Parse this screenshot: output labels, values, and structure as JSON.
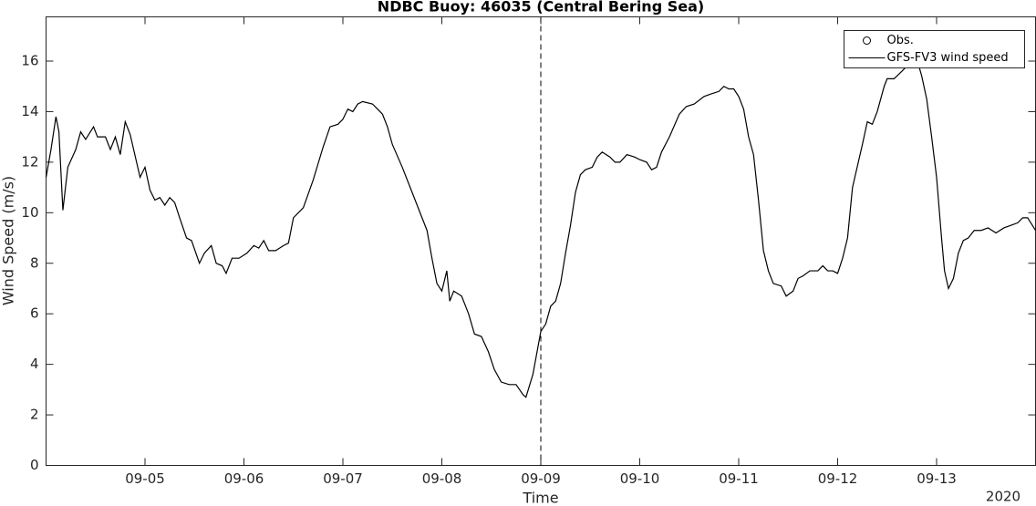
{
  "chart_data": {
    "type": "line",
    "title": "NDBC Buoy: 46035 (Central Bering Sea)",
    "x_label": "Time",
    "y_label": "Wind Speed (m/s)",
    "x_year": "2020",
    "xlim": [
      4,
      14
    ],
    "ylim": [
      0,
      17.75
    ],
    "xticks": [
      {
        "value": 5,
        "label": "09-05"
      },
      {
        "value": 6,
        "label": "09-06"
      },
      {
        "value": 7,
        "label": "09-07"
      },
      {
        "value": 8,
        "label": "09-08"
      },
      {
        "value": 9,
        "label": "09-09"
      },
      {
        "value": 10,
        "label": "09-10"
      },
      {
        "value": 11,
        "label": "09-11"
      },
      {
        "value": 12,
        "label": "09-12"
      },
      {
        "value": 13,
        "label": "09-13"
      }
    ],
    "yticks": [
      0,
      2,
      4,
      6,
      8,
      10,
      12,
      14,
      16
    ],
    "vline": 9,
    "legend": "upper right",
    "grid": false,
    "series": [
      {
        "name": "Obs.",
        "color": "#000000",
        "marker": "circle",
        "x": [],
        "values": []
      },
      {
        "name": "GFS-FV3 wind speed",
        "color": "#000000",
        "x": [
          4.0,
          4.05,
          4.1,
          4.13,
          4.17,
          4.22,
          4.3,
          4.35,
          4.4,
          4.48,
          4.52,
          4.6,
          4.65,
          4.7,
          4.75,
          4.8,
          4.85,
          4.95,
          5.0,
          5.05,
          5.1,
          5.15,
          5.2,
          5.25,
          5.3,
          5.35,
          5.42,
          5.47,
          5.55,
          5.6,
          5.67,
          5.72,
          5.78,
          5.82,
          5.88,
          5.95,
          6.03,
          6.1,
          6.15,
          6.2,
          6.25,
          6.32,
          6.4,
          6.45,
          6.5,
          6.6,
          6.7,
          6.8,
          6.87,
          6.95,
          7.0,
          7.05,
          7.1,
          7.15,
          7.2,
          7.3,
          7.35,
          7.4,
          7.45,
          7.5,
          7.6,
          7.7,
          7.8,
          7.85,
          7.9,
          7.95,
          8.0,
          8.05,
          8.08,
          8.12,
          8.2,
          8.27,
          8.33,
          8.4,
          8.47,
          8.53,
          8.6,
          8.68,
          8.75,
          8.82,
          8.85,
          8.92,
          9.0,
          9.05,
          9.1,
          9.15,
          9.2,
          9.25,
          9.3,
          9.35,
          9.4,
          9.45,
          9.52,
          9.57,
          9.62,
          9.7,
          9.75,
          9.8,
          9.87,
          9.95,
          10.0,
          10.07,
          10.12,
          10.17,
          10.22,
          10.3,
          10.4,
          10.47,
          10.55,
          10.65,
          10.72,
          10.8,
          10.85,
          10.9,
          10.95,
          11.0,
          11.05,
          11.1,
          11.15,
          11.2,
          11.25,
          11.3,
          11.35,
          11.43,
          11.48,
          11.55,
          11.6,
          11.65,
          11.72,
          11.8,
          11.85,
          11.9,
          11.95,
          12.0,
          12.05,
          12.1,
          12.15,
          12.25,
          12.3,
          12.35,
          12.4,
          12.47,
          12.5,
          12.57,
          12.65,
          12.75,
          12.8,
          12.85,
          12.9,
          12.95,
          13.0,
          13.05,
          13.08,
          13.12,
          13.17,
          13.22,
          13.27,
          13.32,
          13.38,
          13.45,
          13.52,
          13.6,
          13.68,
          13.75,
          13.82,
          13.87,
          13.92,
          14.0
        ],
        "values": [
          11.4,
          12.5,
          13.8,
          13.2,
          10.1,
          11.8,
          12.5,
          13.2,
          12.9,
          13.4,
          13.0,
          13.0,
          12.5,
          13.0,
          12.3,
          13.6,
          13.1,
          11.4,
          11.8,
          10.9,
          10.5,
          10.6,
          10.3,
          10.6,
          10.4,
          9.8,
          9.0,
          8.9,
          8.0,
          8.4,
          8.7,
          8.0,
          7.9,
          7.6,
          8.2,
          8.2,
          8.4,
          8.7,
          8.6,
          8.9,
          8.5,
          8.5,
          8.7,
          8.8,
          9.8,
          10.2,
          11.3,
          12.6,
          13.4,
          13.5,
          13.7,
          14.1,
          14.0,
          14.3,
          14.4,
          14.3,
          14.1,
          13.9,
          13.4,
          12.7,
          11.8,
          10.8,
          9.8,
          9.3,
          8.2,
          7.2,
          6.9,
          7.7,
          6.5,
          6.9,
          6.7,
          6.0,
          5.2,
          5.1,
          4.5,
          3.8,
          3.3,
          3.2,
          3.2,
          2.8,
          2.7,
          3.6,
          5.3,
          5.6,
          6.3,
          6.5,
          7.2,
          8.4,
          9.5,
          10.8,
          11.5,
          11.7,
          11.8,
          12.2,
          12.4,
          12.2,
          12.0,
          12.0,
          12.3,
          12.2,
          12.1,
          12.0,
          11.7,
          11.8,
          12.4,
          13.0,
          13.9,
          14.2,
          14.3,
          14.6,
          14.7,
          14.8,
          15.0,
          14.9,
          14.9,
          14.6,
          14.1,
          13.0,
          12.3,
          10.5,
          8.5,
          7.7,
          7.2,
          7.1,
          6.7,
          6.9,
          7.4,
          7.5,
          7.7,
          7.7,
          7.9,
          7.7,
          7.7,
          7.6,
          8.2,
          9.0,
          11.0,
          12.7,
          13.6,
          13.5,
          14.0,
          15.0,
          15.3,
          15.3,
          15.6,
          16.0,
          16.1,
          15.4,
          14.5,
          13.0,
          11.4,
          9.0,
          7.7,
          7.0,
          7.4,
          8.4,
          8.9,
          9.0,
          9.3,
          9.3,
          9.4,
          9.2,
          9.4,
          9.5,
          9.6,
          9.8,
          9.8,
          9.3
        ]
      }
    ]
  }
}
